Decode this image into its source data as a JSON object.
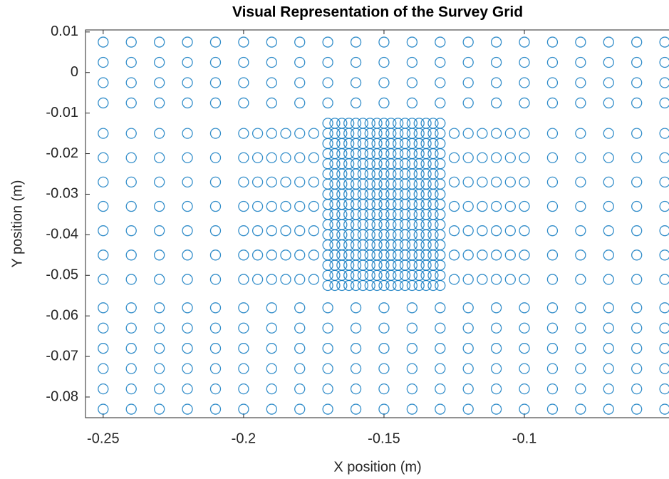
{
  "chart_data": {
    "type": "scatter",
    "title": "Visual Representation of the Survey Grid",
    "x_label": "X position (m)",
    "y_label": "Y position (m)",
    "color": "#0072bd",
    "marker": "circle",
    "xlim": [
      -0.2563,
      -0.0485
    ],
    "ylim": [
      -0.0851,
      0.0105
    ],
    "xticks": [
      -0.25,
      -0.2,
      -0.15,
      -0.1
    ],
    "yticks": [
      0.01,
      0,
      -0.01,
      -0.02,
      -0.03,
      -0.04,
      -0.05,
      -0.06,
      -0.07,
      -0.08
    ],
    "x": [
      -0.25,
      -0.24,
      -0.23,
      -0.22,
      -0.21,
      -0.2,
      -0.19,
      -0.18,
      -0.17,
      -0.16,
      -0.15,
      -0.14,
      -0.13,
      -0.12,
      -0.11,
      -0.1,
      -0.09,
      -0.08,
      -0.07,
      -0.06,
      -0.05,
      -0.25,
      -0.24,
      -0.23,
      -0.22,
      -0.21,
      -0.2,
      -0.19,
      -0.18,
      -0.17,
      -0.16,
      -0.15,
      -0.14,
      -0.13,
      -0.12,
      -0.11,
      -0.1,
      -0.09,
      -0.08,
      -0.07,
      -0.06,
      -0.05,
      -0.25,
      -0.24,
      -0.23,
      -0.22,
      -0.21,
      -0.2,
      -0.19,
      -0.18,
      -0.17,
      -0.16,
      -0.15,
      -0.14,
      -0.13,
      -0.12,
      -0.11,
      -0.1,
      -0.09,
      -0.08,
      -0.07,
      -0.06,
      -0.05,
      -0.25,
      -0.24,
      -0.23,
      -0.22,
      -0.21,
      -0.2,
      -0.19,
      -0.18,
      -0.17,
      -0.16,
      -0.15,
      -0.14,
      -0.13,
      -0.12,
      -0.11,
      -0.1,
      -0.09,
      -0.08,
      -0.07,
      -0.06,
      -0.05,
      -0.25,
      -0.24,
      -0.23,
      -0.22,
      -0.21,
      -0.2,
      -0.195,
      -0.19,
      -0.185,
      -0.18,
      -0.175,
      -0.125,
      -0.12,
      -0.115,
      -0.11,
      -0.105,
      -0.1,
      -0.09,
      -0.08,
      -0.07,
      -0.06,
      -0.05,
      -0.25,
      -0.24,
      -0.23,
      -0.22,
      -0.21,
      -0.2,
      -0.195,
      -0.19,
      -0.185,
      -0.18,
      -0.175,
      -0.125,
      -0.12,
      -0.115,
      -0.11,
      -0.105,
      -0.1,
      -0.09,
      -0.08,
      -0.07,
      -0.06,
      -0.05,
      -0.25,
      -0.24,
      -0.23,
      -0.22,
      -0.21,
      -0.2,
      -0.195,
      -0.19,
      -0.185,
      -0.18,
      -0.175,
      -0.125,
      -0.12,
      -0.115,
      -0.11,
      -0.105,
      -0.1,
      -0.09,
      -0.08,
      -0.07,
      -0.06,
      -0.05,
      -0.25,
      -0.24,
      -0.23,
      -0.22,
      -0.21,
      -0.2,
      -0.195,
      -0.19,
      -0.185,
      -0.18,
      -0.175,
      -0.125,
      -0.12,
      -0.115,
      -0.11,
      -0.105,
      -0.1,
      -0.09,
      -0.08,
      -0.07,
      -0.06,
      -0.05,
      -0.25,
      -0.24,
      -0.23,
      -0.22,
      -0.21,
      -0.2,
      -0.195,
      -0.19,
      -0.185,
      -0.18,
      -0.175,
      -0.125,
      -0.12,
      -0.115,
      -0.11,
      -0.105,
      -0.1,
      -0.09,
      -0.08,
      -0.07,
      -0.06,
      -0.05,
      -0.25,
      -0.24,
      -0.23,
      -0.22,
      -0.21,
      -0.2,
      -0.195,
      -0.19,
      -0.185,
      -0.18,
      -0.175,
      -0.125,
      -0.12,
      -0.115,
      -0.11,
      -0.105,
      -0.1,
      -0.09,
      -0.08,
      -0.07,
      -0.06,
      -0.05,
      -0.25,
      -0.24,
      -0.23,
      -0.22,
      -0.21,
      -0.2,
      -0.195,
      -0.19,
      -0.185,
      -0.18,
      -0.175,
      -0.125,
      -0.12,
      -0.115,
      -0.11,
      -0.105,
      -0.1,
      -0.09,
      -0.08,
      -0.07,
      -0.06,
      -0.05,
      -0.17,
      -0.1675,
      -0.165,
      -0.1625,
      -0.16,
      -0.1575,
      -0.155,
      -0.1525,
      -0.15,
      -0.1475,
      -0.145,
      -0.1425,
      -0.14,
      -0.1375,
      -0.135,
      -0.1325,
      -0.13,
      -0.17,
      -0.1675,
      -0.165,
      -0.1625,
      -0.16,
      -0.1575,
      -0.155,
      -0.1525,
      -0.15,
      -0.1475,
      -0.145,
      -0.1425,
      -0.14,
      -0.1375,
      -0.135,
      -0.1325,
      -0.13,
      -0.17,
      -0.1675,
      -0.165,
      -0.1625,
      -0.16,
      -0.1575,
      -0.155,
      -0.1525,
      -0.15,
      -0.1475,
      -0.145,
      -0.1425,
      -0.14,
      -0.1375,
      -0.135,
      -0.1325,
      -0.13,
      -0.17,
      -0.1675,
      -0.165,
      -0.1625,
      -0.16,
      -0.1575,
      -0.155,
      -0.1525,
      -0.15,
      -0.1475,
      -0.145,
      -0.1425,
      -0.14,
      -0.1375,
      -0.135,
      -0.1325,
      -0.13,
      -0.17,
      -0.1675,
      -0.165,
      -0.1625,
      -0.16,
      -0.1575,
      -0.155,
      -0.1525,
      -0.15,
      -0.1475,
      -0.145,
      -0.1425,
      -0.14,
      -0.1375,
      -0.135,
      -0.1325,
      -0.13,
      -0.17,
      -0.1675,
      -0.165,
      -0.1625,
      -0.16,
      -0.1575,
      -0.155,
      -0.1525,
      -0.15,
      -0.1475,
      -0.145,
      -0.1425,
      -0.14,
      -0.1375,
      -0.135,
      -0.1325,
      -0.13,
      -0.17,
      -0.1675,
      -0.165,
      -0.1625,
      -0.16,
      -0.1575,
      -0.155,
      -0.1525,
      -0.15,
      -0.1475,
      -0.145,
      -0.1425,
      -0.14,
      -0.1375,
      -0.135,
      -0.1325,
      -0.13,
      -0.17,
      -0.1675,
      -0.165,
      -0.1625,
      -0.16,
      -0.1575,
      -0.155,
      -0.1525,
      -0.15,
      -0.1475,
      -0.145,
      -0.1425,
      -0.14,
      -0.1375,
      -0.135,
      -0.1325,
      -0.13,
      -0.17,
      -0.1675,
      -0.165,
      -0.1625,
      -0.16,
      -0.1575,
      -0.155,
      -0.1525,
      -0.15,
      -0.1475,
      -0.145,
      -0.1425,
      -0.14,
      -0.1375,
      -0.135,
      -0.1325,
      -0.13,
      -0.17,
      -0.1675,
      -0.165,
      -0.1625,
      -0.16,
      -0.1575,
      -0.155,
      -0.1525,
      -0.15,
      -0.1475,
      -0.145,
      -0.1425,
      -0.14,
      -0.1375,
      -0.135,
      -0.1325,
      -0.13,
      -0.17,
      -0.1675,
      -0.165,
      -0.1625,
      -0.16,
      -0.1575,
      -0.155,
      -0.1525,
      -0.15,
      -0.1475,
      -0.145,
      -0.1425,
      -0.14,
      -0.1375,
      -0.135,
      -0.1325,
      -0.13,
      -0.17,
      -0.1675,
      -0.165,
      -0.1625,
      -0.16,
      -0.1575,
      -0.155,
      -0.1525,
      -0.15,
      -0.1475,
      -0.145,
      -0.1425,
      -0.14,
      -0.1375,
      -0.135,
      -0.1325,
      -0.13,
      -0.17,
      -0.1675,
      -0.165,
      -0.1625,
      -0.16,
      -0.1575,
      -0.155,
      -0.1525,
      -0.15,
      -0.1475,
      -0.145,
      -0.1425,
      -0.14,
      -0.1375,
      -0.135,
      -0.1325,
      -0.13,
      -0.17,
      -0.1675,
      -0.165,
      -0.1625,
      -0.16,
      -0.1575,
      -0.155,
      -0.1525,
      -0.15,
      -0.1475,
      -0.145,
      -0.1425,
      -0.14,
      -0.1375,
      -0.135,
      -0.1325,
      -0.13,
      -0.17,
      -0.1675,
      -0.165,
      -0.1625,
      -0.16,
      -0.1575,
      -0.155,
      -0.1525,
      -0.15,
      -0.1475,
      -0.145,
      -0.1425,
      -0.14,
      -0.1375,
      -0.135,
      -0.1325,
      -0.13,
      -0.17,
      -0.1675,
      -0.165,
      -0.1625,
      -0.16,
      -0.1575,
      -0.155,
      -0.1525,
      -0.15,
      -0.1475,
      -0.145,
      -0.1425,
      -0.14,
      -0.1375,
      -0.135,
      -0.1325,
      -0.13,
      -0.17,
      -0.1675,
      -0.165,
      -0.1625,
      -0.16,
      -0.1575,
      -0.155,
      -0.1525,
      -0.15,
      -0.1475,
      -0.145,
      -0.1425,
      -0.14,
      -0.1375,
      -0.135,
      -0.1325,
      -0.13,
      -0.25,
      -0.24,
      -0.23,
      -0.22,
      -0.21,
      -0.2,
      -0.19,
      -0.18,
      -0.17,
      -0.16,
      -0.15,
      -0.14,
      -0.13,
      -0.12,
      -0.11,
      -0.1,
      -0.09,
      -0.08,
      -0.07,
      -0.06,
      -0.05,
      -0.25,
      -0.24,
      -0.23,
      -0.22,
      -0.21,
      -0.2,
      -0.19,
      -0.18,
      -0.17,
      -0.16,
      -0.15,
      -0.14,
      -0.13,
      -0.12,
      -0.11,
      -0.1,
      -0.09,
      -0.08,
      -0.07,
      -0.06,
      -0.05,
      -0.25,
      -0.24,
      -0.23,
      -0.22,
      -0.21,
      -0.2,
      -0.19,
      -0.18,
      -0.17,
      -0.16,
      -0.15,
      -0.14,
      -0.13,
      -0.12,
      -0.11,
      -0.1,
      -0.09,
      -0.08,
      -0.07,
      -0.06,
      -0.05,
      -0.25,
      -0.24,
      -0.23,
      -0.22,
      -0.21,
      -0.2,
      -0.19,
      -0.18,
      -0.17,
      -0.16,
      -0.15,
      -0.14,
      -0.13,
      -0.12,
      -0.11,
      -0.1,
      -0.09,
      -0.08,
      -0.07,
      -0.06,
      -0.05,
      -0.25,
      -0.24,
      -0.23,
      -0.22,
      -0.21,
      -0.2,
      -0.19,
      -0.18,
      -0.17,
      -0.16,
      -0.15,
      -0.14,
      -0.13,
      -0.12,
      -0.11,
      -0.1,
      -0.09,
      -0.08,
      -0.07,
      -0.06,
      -0.05,
      -0.25,
      -0.24,
      -0.23,
      -0.22,
      -0.21,
      -0.2,
      -0.19,
      -0.18,
      -0.17,
      -0.16,
      -0.15,
      -0.14,
      -0.13,
      -0.12,
      -0.11,
      -0.1,
      -0.09,
      -0.08,
      -0.07,
      -0.06,
      -0.05
    ],
    "y": [
      0.0075,
      0.0075,
      0.0075,
      0.0075,
      0.0075,
      0.0075,
      0.0075,
      0.0075,
      0.0075,
      0.0075,
      0.0075,
      0.0075,
      0.0075,
      0.0075,
      0.0075,
      0.0075,
      0.0075,
      0.0075,
      0.0075,
      0.0075,
      0.0075,
      0.0025,
      0.0025,
      0.0025,
      0.0025,
      0.0025,
      0.0025,
      0.0025,
      0.0025,
      0.0025,
      0.0025,
      0.0025,
      0.0025,
      0.0025,
      0.0025,
      0.0025,
      0.0025,
      0.0025,
      0.0025,
      0.0025,
      0.0025,
      0.0025,
      -0.0025,
      -0.0025,
      -0.0025,
      -0.0025,
      -0.0025,
      -0.0025,
      -0.0025,
      -0.0025,
      -0.0025,
      -0.0025,
      -0.0025,
      -0.0025,
      -0.0025,
      -0.0025,
      -0.0025,
      -0.0025,
      -0.0025,
      -0.0025,
      -0.0025,
      -0.0025,
      -0.0025,
      -0.0075,
      -0.0075,
      -0.0075,
      -0.0075,
      -0.0075,
      -0.0075,
      -0.0075,
      -0.0075,
      -0.0075,
      -0.0075,
      -0.0075,
      -0.0075,
      -0.0075,
      -0.0075,
      -0.0075,
      -0.0075,
      -0.0075,
      -0.0075,
      -0.0075,
      -0.0075,
      -0.0075,
      -0.015,
      -0.015,
      -0.015,
      -0.015,
      -0.015,
      -0.015,
      -0.015,
      -0.015,
      -0.015,
      -0.015,
      -0.015,
      -0.015,
      -0.015,
      -0.015,
      -0.015,
      -0.015,
      -0.015,
      -0.015,
      -0.015,
      -0.015,
      -0.015,
      -0.015,
      -0.021,
      -0.021,
      -0.021,
      -0.021,
      -0.021,
      -0.021,
      -0.021,
      -0.021,
      -0.021,
      -0.021,
      -0.021,
      -0.021,
      -0.021,
      -0.021,
      -0.021,
      -0.021,
      -0.021,
      -0.021,
      -0.021,
      -0.021,
      -0.021,
      -0.021,
      -0.027,
      -0.027,
      -0.027,
      -0.027,
      -0.027,
      -0.027,
      -0.027,
      -0.027,
      -0.027,
      -0.027,
      -0.027,
      -0.027,
      -0.027,
      -0.027,
      -0.027,
      -0.027,
      -0.027,
      -0.027,
      -0.027,
      -0.027,
      -0.027,
      -0.027,
      -0.033,
      -0.033,
      -0.033,
      -0.033,
      -0.033,
      -0.033,
      -0.033,
      -0.033,
      -0.033,
      -0.033,
      -0.033,
      -0.033,
      -0.033,
      -0.033,
      -0.033,
      -0.033,
      -0.033,
      -0.033,
      -0.033,
      -0.033,
      -0.033,
      -0.033,
      -0.039,
      -0.039,
      -0.039,
      -0.039,
      -0.039,
      -0.039,
      -0.039,
      -0.039,
      -0.039,
      -0.039,
      -0.039,
      -0.039,
      -0.039,
      -0.039,
      -0.039,
      -0.039,
      -0.039,
      -0.039,
      -0.039,
      -0.039,
      -0.039,
      -0.039,
      -0.045,
      -0.045,
      -0.045,
      -0.045,
      -0.045,
      -0.045,
      -0.045,
      -0.045,
      -0.045,
      -0.045,
      -0.045,
      -0.045,
      -0.045,
      -0.045,
      -0.045,
      -0.045,
      -0.045,
      -0.045,
      -0.045,
      -0.045,
      -0.045,
      -0.045,
      -0.051,
      -0.051,
      -0.051,
      -0.051,
      -0.051,
      -0.051,
      -0.051,
      -0.051,
      -0.051,
      -0.051,
      -0.051,
      -0.051,
      -0.051,
      -0.051,
      -0.051,
      -0.051,
      -0.051,
      -0.051,
      -0.051,
      -0.051,
      -0.051,
      -0.051,
      -0.0125,
      -0.0125,
      -0.0125,
      -0.0125,
      -0.0125,
      -0.0125,
      -0.0125,
      -0.0125,
      -0.0125,
      -0.0125,
      -0.0125,
      -0.0125,
      -0.0125,
      -0.0125,
      -0.0125,
      -0.0125,
      -0.0125,
      -0.015,
      -0.015,
      -0.015,
      -0.015,
      -0.015,
      -0.015,
      -0.015,
      -0.015,
      -0.015,
      -0.015,
      -0.015,
      -0.015,
      -0.015,
      -0.015,
      -0.015,
      -0.015,
      -0.015,
      -0.0175,
      -0.0175,
      -0.0175,
      -0.0175,
      -0.0175,
      -0.0175,
      -0.0175,
      -0.0175,
      -0.0175,
      -0.0175,
      -0.0175,
      -0.0175,
      -0.0175,
      -0.0175,
      -0.0175,
      -0.0175,
      -0.0175,
      -0.02,
      -0.02,
      -0.02,
      -0.02,
      -0.02,
      -0.02,
      -0.02,
      -0.02,
      -0.02,
      -0.02,
      -0.02,
      -0.02,
      -0.02,
      -0.02,
      -0.02,
      -0.02,
      -0.02,
      -0.0225,
      -0.0225,
      -0.0225,
      -0.0225,
      -0.0225,
      -0.0225,
      -0.0225,
      -0.0225,
      -0.0225,
      -0.0225,
      -0.0225,
      -0.0225,
      -0.0225,
      -0.0225,
      -0.0225,
      -0.0225,
      -0.0225,
      -0.025,
      -0.025,
      -0.025,
      -0.025,
      -0.025,
      -0.025,
      -0.025,
      -0.025,
      -0.025,
      -0.025,
      -0.025,
      -0.025,
      -0.025,
      -0.025,
      -0.025,
      -0.025,
      -0.025,
      -0.0275,
      -0.0275,
      -0.0275,
      -0.0275,
      -0.0275,
      -0.0275,
      -0.0275,
      -0.0275,
      -0.0275,
      -0.0275,
      -0.0275,
      -0.0275,
      -0.0275,
      -0.0275,
      -0.0275,
      -0.0275,
      -0.0275,
      -0.03,
      -0.03,
      -0.03,
      -0.03,
      -0.03,
      -0.03,
      -0.03,
      -0.03,
      -0.03,
      -0.03,
      -0.03,
      -0.03,
      -0.03,
      -0.03,
      -0.03,
      -0.03,
      -0.03,
      -0.0325,
      -0.0325,
      -0.0325,
      -0.0325,
      -0.0325,
      -0.0325,
      -0.0325,
      -0.0325,
      -0.0325,
      -0.0325,
      -0.0325,
      -0.0325,
      -0.0325,
      -0.0325,
      -0.0325,
      -0.0325,
      -0.0325,
      -0.035,
      -0.035,
      -0.035,
      -0.035,
      -0.035,
      -0.035,
      -0.035,
      -0.035,
      -0.035,
      -0.035,
      -0.035,
      -0.035,
      -0.035,
      -0.035,
      -0.035,
      -0.035,
      -0.035,
      -0.0375,
      -0.0375,
      -0.0375,
      -0.0375,
      -0.0375,
      -0.0375,
      -0.0375,
      -0.0375,
      -0.0375,
      -0.0375,
      -0.0375,
      -0.0375,
      -0.0375,
      -0.0375,
      -0.0375,
      -0.0375,
      -0.0375,
      -0.04,
      -0.04,
      -0.04,
      -0.04,
      -0.04,
      -0.04,
      -0.04,
      -0.04,
      -0.04,
      -0.04,
      -0.04,
      -0.04,
      -0.04,
      -0.04,
      -0.04,
      -0.04,
      -0.04,
      -0.0425,
      -0.0425,
      -0.0425,
      -0.0425,
      -0.0425,
      -0.0425,
      -0.0425,
      -0.0425,
      -0.0425,
      -0.0425,
      -0.0425,
      -0.0425,
      -0.0425,
      -0.0425,
      -0.0425,
      -0.0425,
      -0.0425,
      -0.045,
      -0.045,
      -0.045,
      -0.045,
      -0.045,
      -0.045,
      -0.045,
      -0.045,
      -0.045,
      -0.045,
      -0.045,
      -0.045,
      -0.045,
      -0.045,
      -0.045,
      -0.045,
      -0.045,
      -0.0475,
      -0.0475,
      -0.0475,
      -0.0475,
      -0.0475,
      -0.0475,
      -0.0475,
      -0.0475,
      -0.0475,
      -0.0475,
      -0.0475,
      -0.0475,
      -0.0475,
      -0.0475,
      -0.0475,
      -0.0475,
      -0.0475,
      -0.05,
      -0.05,
      -0.05,
      -0.05,
      -0.05,
      -0.05,
      -0.05,
      -0.05,
      -0.05,
      -0.05,
      -0.05,
      -0.05,
      -0.05,
      -0.05,
      -0.05,
      -0.05,
      -0.05,
      -0.0525,
      -0.0525,
      -0.0525,
      -0.0525,
      -0.0525,
      -0.0525,
      -0.0525,
      -0.0525,
      -0.0525,
      -0.0525,
      -0.0525,
      -0.0525,
      -0.0525,
      -0.0525,
      -0.0525,
      -0.0525,
      -0.0525,
      -0.058,
      -0.058,
      -0.058,
      -0.058,
      -0.058,
      -0.058,
      -0.058,
      -0.058,
      -0.058,
      -0.058,
      -0.058,
      -0.058,
      -0.058,
      -0.058,
      -0.058,
      -0.058,
      -0.058,
      -0.058,
      -0.058,
      -0.058,
      -0.058,
      -0.063,
      -0.063,
      -0.063,
      -0.063,
      -0.063,
      -0.063,
      -0.063,
      -0.063,
      -0.063,
      -0.063,
      -0.063,
      -0.063,
      -0.063,
      -0.063,
      -0.063,
      -0.063,
      -0.063,
      -0.063,
      -0.063,
      -0.063,
      -0.063,
      -0.068,
      -0.068,
      -0.068,
      -0.068,
      -0.068,
      -0.068,
      -0.068,
      -0.068,
      -0.068,
      -0.068,
      -0.068,
      -0.068,
      -0.068,
      -0.068,
      -0.068,
      -0.068,
      -0.068,
      -0.068,
      -0.068,
      -0.068,
      -0.068,
      -0.073,
      -0.073,
      -0.073,
      -0.073,
      -0.073,
      -0.073,
      -0.073,
      -0.073,
      -0.073,
      -0.073,
      -0.073,
      -0.073,
      -0.073,
      -0.073,
      -0.073,
      -0.073,
      -0.073,
      -0.073,
      -0.073,
      -0.073,
      -0.073,
      -0.078,
      -0.078,
      -0.078,
      -0.078,
      -0.078,
      -0.078,
      -0.078,
      -0.078,
      -0.078,
      -0.078,
      -0.078,
      -0.078,
      -0.078,
      -0.078,
      -0.078,
      -0.078,
      -0.078,
      -0.078,
      -0.078,
      -0.078,
      -0.078,
      -0.083,
      -0.083,
      -0.083,
      -0.083,
      -0.083,
      -0.083,
      -0.083,
      -0.083,
      -0.083,
      -0.083,
      -0.083,
      -0.083,
      -0.083,
      -0.083,
      -0.083,
      -0.083,
      -0.083,
      -0.083,
      -0.083,
      -0.083,
      -0.083
    ]
  }
}
